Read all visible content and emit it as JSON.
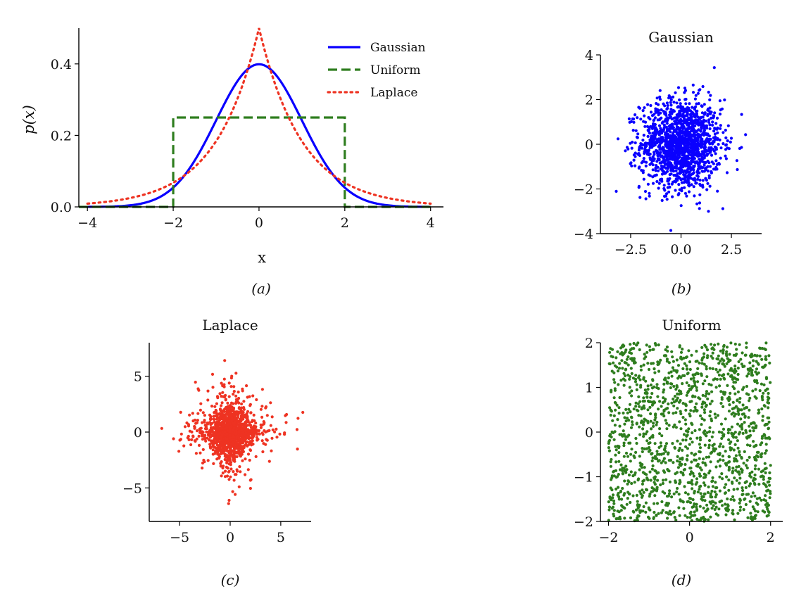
{
  "colors": {
    "gaussian": "#0a00ff",
    "uniform": "#2e7d1e",
    "laplace": "#ee3322"
  },
  "chart_data": [
    {
      "id": "a",
      "type": "line",
      "caption": "(a)",
      "xlabel": "x",
      "ylabel": "p(x)",
      "xlim": [
        -4.2,
        4.3
      ],
      "ylim": [
        0,
        0.5
      ],
      "xticks": [
        -4,
        -2,
        0,
        2,
        4
      ],
      "xtick_labels": [
        "−4",
        "−2",
        "0",
        "2",
        "4"
      ],
      "yticks": [
        0.0,
        0.2,
        0.4
      ],
      "ytick_labels": [
        "0.0",
        "0.2",
        "0.4"
      ],
      "legend_position": "top-right",
      "series": [
        {
          "name": "Gaussian",
          "style": "solid",
          "color_key": "gaussian",
          "function": "normal",
          "params": {
            "mu": 0,
            "sigma": 1
          }
        },
        {
          "name": "Uniform",
          "style": "dashed",
          "color_key": "uniform",
          "function": "uniform",
          "params": {
            "a": -2,
            "b": 2,
            "height": 0.25
          }
        },
        {
          "name": "Laplace",
          "style": "dotted",
          "color_key": "laplace",
          "function": "laplace",
          "params": {
            "mu": 0,
            "b": 1
          }
        }
      ]
    },
    {
      "id": "b",
      "type": "scatter",
      "caption": "(b)",
      "title": "Gaussian",
      "color_key": "gaussian",
      "distribution": "normal",
      "scale": 1,
      "n_points": 1500,
      "xlim": [
        -4,
        4
      ],
      "ylim": [
        -4,
        4
      ],
      "xticks": [
        -2.5,
        0,
        2.5
      ],
      "xtick_labels": [
        "−2.5",
        "0.0",
        "2.5"
      ],
      "yticks": [
        -4,
        -2,
        0,
        2,
        4
      ],
      "ytick_labels": [
        "−4",
        "−2",
        "0",
        "2",
        "4"
      ]
    },
    {
      "id": "c",
      "type": "scatter",
      "caption": "(c)",
      "title": "Laplace",
      "color_key": "laplace",
      "distribution": "laplace",
      "scale": 1,
      "n_points": 1500,
      "xlim": [
        -8,
        8
      ],
      "ylim": [
        -8,
        8
      ],
      "xticks": [
        -5,
        0,
        5
      ],
      "xtick_labels": [
        "−5",
        "0",
        "5"
      ],
      "yticks": [
        -5,
        0,
        5
      ],
      "ytick_labels": [
        "−5",
        "0",
        "5"
      ]
    },
    {
      "id": "d",
      "type": "scatter",
      "caption": "(d)",
      "title": "Uniform",
      "color_key": "uniform",
      "distribution": "uniform",
      "scale": 2,
      "n_points": 1500,
      "xlim": [
        -2.2,
        2.3
      ],
      "ylim": [
        -2,
        2
      ],
      "xticks": [
        -2,
        0,
        2
      ],
      "xtick_labels": [
        "−2",
        "0",
        "2"
      ],
      "yticks": [
        -2,
        -1,
        0,
        1,
        2
      ],
      "ytick_labels": [
        "−2",
        "−1",
        "0",
        "1",
        "2"
      ]
    }
  ]
}
